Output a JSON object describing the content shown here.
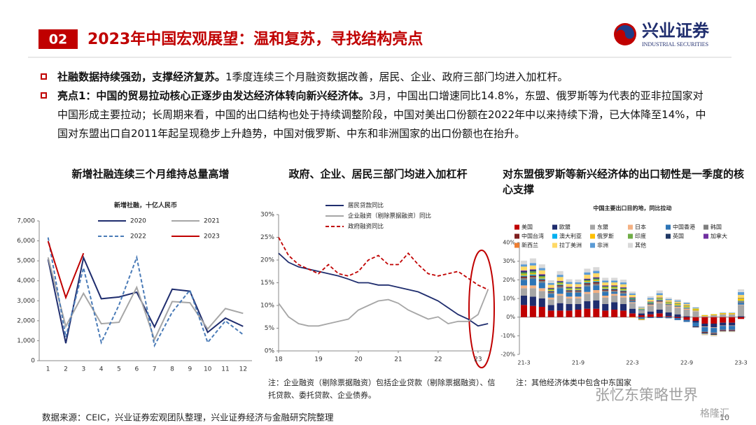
{
  "header": {
    "number": "02",
    "title": "2023年中国宏观展望：温和复苏，寻找结构亮点",
    "logo": "兴业证券",
    "logo_sub": "INDUSTRIAL SECURITIES"
  },
  "bullets": [
    {
      "bold": "社融数据持续强劲，支撑经济复苏。",
      "text": "1季度连续三个月融资数据改善，居民、企业、政府三部门均进入加杠杆。"
    },
    {
      "bold": "亮点1：中国的贸易拉动核心正逐步由发达经济体转向新兴经济体。",
      "text": "3月，中国出口增速同比14.8%，东盟、俄罗斯等为代表的亚非拉国家对中国形成主要拉动；长周期来看，中国的出口结构也处于持续调整阶段，中国对美出口份额在2022年中以来持续下滑，已大体降至14%，中国对东盟出口自2011年起呈现稳步上升趋势，中国对俄罗斯、中东和非洲国家的出口份额也在抬升。"
    }
  ],
  "chart_data": [
    {
      "type": "line",
      "heading": "新增社融连续三个月维持总量高增",
      "title": "新增社融，十亿人民币",
      "categories": [
        "1",
        "2",
        "3",
        "4",
        "5",
        "6",
        "7",
        "8",
        "9",
        "10",
        "11",
        "12"
      ],
      "series": [
        {
          "name": "2020",
          "color": "#1f2d6e",
          "values": [
            5070,
            870,
            5160,
            3100,
            3190,
            3430,
            1690,
            3580,
            3480,
            1420,
            2130,
            1720
          ]
        },
        {
          "name": "2021",
          "color": "#a6a6a6",
          "values": [
            5170,
            1720,
            3370,
            1850,
            1920,
            3670,
            1060,
            2960,
            2900,
            1590,
            2610,
            2370
          ]
        },
        {
          "name": "2022",
          "color": "#4a7bb7",
          "dashed": true,
          "values": [
            6170,
            1190,
            4650,
            910,
            2790,
            5170,
            760,
            2430,
            3530,
            910,
            1990,
            1310
          ]
        },
        {
          "name": "2023",
          "color": "#c00000",
          "values": [
            5980,
            3160,
            5380,
            null,
            null,
            null,
            null,
            null,
            null,
            null,
            null,
            null
          ]
        }
      ],
      "ylim": [
        0,
        7000
      ],
      "yticks": [
        0,
        {
          "value": 1000,
          "label": "1,000"
        },
        {
          "value": 2000,
          "label": "2,000"
        },
        {
          "value": 3000,
          "label": "3,000"
        },
        {
          "value": 4000,
          "label": "4,000"
        },
        {
          "value": 5000,
          "label": "5,000"
        },
        {
          "value": 6000,
          "label": "6,000"
        },
        {
          "value": 7000,
          "label": "7,000"
        }
      ],
      "grid": false
    },
    {
      "type": "line",
      "heading": "政府、企业、居民三部门均进入加杠杆",
      "x": [
        18,
        18.25,
        18.5,
        18.75,
        19,
        19.25,
        19.5,
        19.75,
        20,
        20.25,
        20.5,
        20.75,
        21,
        21.25,
        21.5,
        21.75,
        22,
        22.25,
        22.5,
        22.75,
        23,
        23.25
      ],
      "series": [
        {
          "name": "居民贷款同比",
          "color": "#1f2d6e",
          "values": [
            21.5,
            19.5,
            18.5,
            18,
            17.5,
            17,
            16.5,
            15.8,
            15,
            15,
            14.5,
            14.5,
            14,
            13.5,
            13,
            12,
            11,
            9.5,
            8,
            7,
            5.5,
            6
          ]
        },
        {
          "name": "企业融资（剔除票据融资）同比",
          "color": "#a6a6a6",
          "values": [
            10.5,
            7.5,
            6,
            5.5,
            5.5,
            6,
            6.5,
            7,
            9,
            10,
            11,
            11.3,
            10.5,
            9,
            8,
            7,
            7.5,
            6,
            6.5,
            6.5,
            8,
            13.5
          ]
        },
        {
          "name": "政府融资同比",
          "color": "#c00000",
          "dashed": true,
          "values": [
            25,
            21,
            19,
            18,
            17,
            19,
            17,
            16.5,
            17.5,
            20,
            21,
            19,
            19,
            21.5,
            19,
            17,
            16.5,
            17,
            17.5,
            16,
            14.5,
            13.5
          ]
        }
      ],
      "xlim": [
        18,
        23.3
      ],
      "xticks": [
        18,
        19,
        20,
        21,
        22,
        23
      ],
      "ylim": [
        0,
        30
      ],
      "yticks": [
        {
          "value": 0,
          "label": "0%"
        },
        {
          "value": 5,
          "label": "5%"
        },
        {
          "value": 10,
          "label": "10%"
        },
        {
          "value": 15,
          "label": "15%"
        },
        {
          "value": 20,
          "label": "20%"
        },
        {
          "value": 25,
          "label": "25%"
        },
        {
          "value": 30,
          "label": "30%"
        }
      ],
      "grid": false,
      "note": "注：企业融资（剔除票据融资）包括企业贷款（剔除票据融资）、信托贷款、委托贷款、企业债券。"
    },
    {
      "type": "bar",
      "stacked": true,
      "heading": "对东盟俄罗斯等新兴经济体的出口韧性是一季度的核心支撑",
      "title": "中国主要出口目的地，同比拉动",
      "categories": [
        "21-3",
        null,
        null,
        null,
        null,
        null,
        "21-9",
        null,
        null,
        null,
        null,
        null,
        "22-3",
        null,
        null,
        null,
        null,
        null,
        "22-9",
        null,
        null,
        null,
        null,
        null,
        "23-3"
      ],
      "series": [
        {
          "name": "美国",
          "color": "#c00000",
          "values": [
            6.5,
            6,
            5.5,
            3.5,
            3.5,
            3.5,
            4,
            4.5,
            4.5,
            3.5,
            4,
            3.5,
            2,
            1,
            1.5,
            2,
            0.5,
            -0.5,
            -1.5,
            -2,
            -3.5,
            -3.5,
            -3,
            -3,
            -1
          ]
        },
        {
          "name": "欧盟",
          "color": "#1f2d6e",
          "values": [
            5,
            5,
            4.5,
            3,
            4,
            3.5,
            3,
            4,
            4.5,
            3.5,
            4,
            3.5,
            2.5,
            1,
            1.5,
            2,
            2,
            1.5,
            0.5,
            -1,
            -1.5,
            -2,
            -1.5,
            -1.5,
            0.5
          ]
        },
        {
          "name": "东盟",
          "color": "#a6a6a6",
          "values": [
            4,
            4.5,
            4,
            3,
            4,
            3,
            3,
            4,
            4,
            3.5,
            3.5,
            3.5,
            3,
            1.5,
            3,
            3.5,
            3.5,
            3.5,
            3.5,
            3,
            0.5,
            1,
            1.5,
            1.5,
            6
          ]
        },
        {
          "name": "日本",
          "color": "#f4b183",
          "values": [
            1.5,
            1.5,
            1.5,
            1,
            1,
            1,
            1,
            1,
            1.5,
            1,
            1,
            1,
            0.5,
            0,
            0.5,
            0.5,
            0.3,
            0.5,
            0.5,
            0.2,
            -0.3,
            -0.3,
            -0.2,
            -0.2,
            0.2
          ]
        },
        {
          "name": "中国香港",
          "color": "#2e75b6",
          "values": [
            3,
            3.5,
            3,
            2,
            3,
            2,
            2,
            3,
            2.5,
            2,
            1,
            1,
            0.5,
            -1,
            -0.5,
            -0.5,
            -0.5,
            -1,
            -1,
            -2,
            -2.5,
            -2.5,
            -2,
            -2,
            1
          ]
        },
        {
          "name": "韩国",
          "color": "#7f7f7f",
          "values": [
            1,
            1,
            1,
            0.8,
            1,
            0.8,
            0.8,
            1,
            1,
            0.8,
            0.8,
            0.8,
            0.6,
            0.3,
            0.5,
            0.6,
            0.4,
            0.4,
            0.4,
            0.2,
            -0.2,
            -0.3,
            -0.2,
            -0.2,
            0.5
          ]
        },
        {
          "name": "中国台湾",
          "color": "#7f1f1f",
          "values": [
            0.8,
            0.8,
            0.7,
            0.5,
            0.6,
            0.5,
            0.5,
            0.7,
            0.8,
            0.6,
            0.6,
            0.6,
            0.4,
            0.1,
            0.3,
            0.4,
            0.2,
            0.1,
            0,
            -0.2,
            -0.4,
            -0.4,
            -0.3,
            -0.3,
            0.2
          ]
        },
        {
          "name": "澳大利亚",
          "color": "#00b0f0",
          "values": [
            0.5,
            0.6,
            0.5,
            0.3,
            0.4,
            0.3,
            0.3,
            0.5,
            0.5,
            0.4,
            0.4,
            0.4,
            0.3,
            0.2,
            0.3,
            0.4,
            0.3,
            0.3,
            0.3,
            0.1,
            -0.1,
            -0.1,
            0,
            0,
            0.3
          ]
        },
        {
          "name": "俄罗斯",
          "color": "#ffc000",
          "values": [
            0.6,
            0.6,
            0.5,
            0.4,
            0.5,
            0.4,
            0.4,
            0.5,
            0.6,
            0.5,
            0.5,
            0.5,
            -0.2,
            -0.5,
            0,
            0.4,
            0.5,
            0.6,
            0.6,
            0.7,
            0.5,
            0.5,
            0.6,
            0.6,
            1.2
          ]
        },
        {
          "name": "印度",
          "color": "#70ad47",
          "values": [
            1,
            1,
            0.8,
            0.6,
            0.7,
            0.6,
            0.5,
            0.6,
            0.7,
            0.6,
            0.6,
            0.6,
            0.4,
            0.3,
            0.5,
            0.5,
            0.4,
            0.5,
            0.4,
            0.3,
            0.1,
            0.1,
            0.1,
            0.1,
            0.3
          ]
        },
        {
          "name": "英国",
          "color": "#203864",
          "values": [
            0.7,
            0.7,
            0.6,
            0.3,
            0.4,
            0.3,
            0.3,
            0.5,
            0.5,
            0.3,
            0.3,
            0.3,
            0.2,
            -0.1,
            0,
            0,
            -0.1,
            -0.1,
            -0.1,
            -0.3,
            -0.4,
            -0.4,
            -0.3,
            -0.3,
            0
          ]
        },
        {
          "name": "加拿大",
          "color": "#7030a0",
          "values": [
            0.4,
            0.4,
            0.4,
            0.3,
            0.3,
            0.3,
            0.3,
            0.3,
            0.3,
            0.3,
            0.3,
            0.3,
            0.2,
            0.1,
            0.2,
            0.2,
            0.1,
            0.1,
            0.1,
            0,
            -0.1,
            -0.1,
            -0.1,
            -0.1,
            0.1
          ]
        },
        {
          "name": "新西兰",
          "color": "#ed7d31",
          "values": [
            0.1,
            0.1,
            0.1,
            0.1,
            0.1,
            0.1,
            0.1,
            0.1,
            0.1,
            0.1,
            0.1,
            0.1,
            0.1,
            0,
            0.1,
            0.1,
            0.1,
            0.1,
            0.1,
            0,
            0,
            0,
            0,
            0,
            0.1
          ]
        },
        {
          "name": "拉丁美洲",
          "color": "#ffd966",
          "values": [
            2,
            2,
            2,
            1.5,
            2,
            1.5,
            1.5,
            2,
            2,
            1.5,
            1.5,
            1.5,
            1.2,
            0.5,
            1,
            1.2,
            0.8,
            0.7,
            0.6,
            0.3,
            -0.3,
            -0.3,
            -0.2,
            -0.2,
            1.5
          ]
        },
        {
          "name": "非洲",
          "color": "#5b9bd5",
          "values": [
            1.2,
            1.3,
            1.2,
            1,
            1.2,
            1,
            1,
            1.3,
            1.3,
            1,
            1,
            1,
            0.8,
            0.3,
            0.8,
            1,
            0.6,
            0.6,
            0.6,
            0.4,
            0,
            0,
            0.2,
            0.2,
            1.5
          ]
        },
        {
          "name": "其他",
          "color": "#d9d9d9",
          "values": [
            2,
            2.5,
            2,
            1.5,
            2,
            1.5,
            1.5,
            2,
            2,
            1.5,
            1.5,
            1.5,
            1,
            0.5,
            1,
            1.5,
            0.8,
            0.7,
            0.5,
            0.2,
            -0.5,
            -0.5,
            -0.3,
            -0.3,
            1.5
          ]
        }
      ],
      "ylim": [
        -20,
        40
      ],
      "yticks": [
        {
          "value": -20,
          "label": "-20%"
        },
        {
          "value": -10,
          "label": "-10%"
        },
        {
          "value": 0,
          "label": "0%"
        },
        {
          "value": 10,
          "label": "10%"
        },
        {
          "value": 20,
          "label": "20%"
        },
        {
          "value": 30,
          "label": "30%"
        },
        {
          "value": 40,
          "label": "40%"
        }
      ],
      "grid": false,
      "note": "注：其他经济体类中包含中东国家"
    }
  ],
  "watermark": "张忆东策略世界",
  "watermark2": "格隆汇",
  "footer": {
    "source": "数据来源：CEIC，兴业证券宏观团队整理，兴业证券经济与金融研究院整理",
    "page": "10"
  }
}
